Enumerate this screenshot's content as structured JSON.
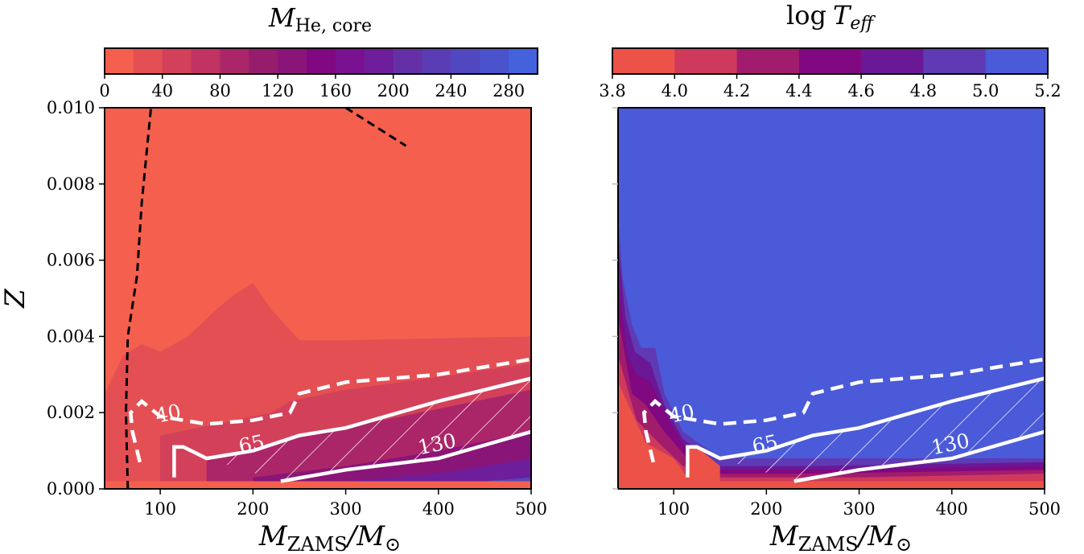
{
  "chart_data": [
    {
      "type": "contour",
      "title_main": "M",
      "title_sub": "He, core",
      "colorbar": {
        "ticks": [
          "0",
          "40",
          "80",
          "120",
          "160",
          "200",
          "240",
          "280"
        ],
        "tick_values": [
          0,
          40,
          80,
          120,
          160,
          200,
          240,
          280
        ],
        "range": [
          0,
          300
        ],
        "levels": 15,
        "colors": [
          "#f5604e",
          "#e44f54",
          "#d3405a",
          "#c03362",
          "#ab2668",
          "#961c6e",
          "#8a1578",
          "#800880",
          "#7a1190",
          "#6e1e9a",
          "#6530a6",
          "#5a3cb4",
          "#5147c0",
          "#4a52cc",
          "#4362dc"
        ]
      },
      "xlabel_main": "M",
      "xlabel_sub": "ZAMS",
      "xlabel_tail": "/M",
      "xlabel_sun": "⊙",
      "ylabel": "Z",
      "x_ticks": [
        "100",
        "200",
        "300",
        "400",
        "500"
      ],
      "x_tick_values": [
        100,
        200,
        300,
        400,
        500
      ],
      "xlim": [
        40,
        500
      ],
      "y_ticks": [
        "0.000",
        "0.002",
        "0.004",
        "0.006",
        "0.008",
        "0.010"
      ],
      "y_tick_values": [
        0,
        0.002,
        0.004,
        0.006,
        0.008,
        0.01
      ],
      "ylim": [
        0,
        0.01
      ],
      "filled_regions": [
        {
          "level_color": "#e44f54",
          "boundary": [
            [
              40,
              0.0025
            ],
            [
              60,
              0.0035
            ],
            [
              80,
              0.0038
            ],
            [
              100,
              0.0036
            ],
            [
              130,
              0.004
            ],
            [
              160,
              0.0047
            ],
            [
              180,
              0.0051
            ],
            [
              200,
              0.0054
            ],
            [
              220,
              0.0047
            ],
            [
              250,
              0.0039
            ],
            [
              300,
              0.0039
            ],
            [
              500,
              0.004
            ],
            [
              500,
              0
            ],
            [
              40,
              0
            ]
          ]
        },
        {
          "level_color": "#d3405a",
          "boundary": [
            [
              100,
              0.0014
            ],
            [
              140,
              0.0016
            ],
            [
              180,
              0.0018
            ],
            [
              220,
              0.002
            ],
            [
              240,
              0.0023
            ],
            [
              300,
              0.0026
            ],
            [
              360,
              0.0028
            ],
            [
              420,
              0.003
            ],
            [
              500,
              0.0033
            ],
            [
              500,
              0
            ],
            [
              100,
              0
            ]
          ]
        },
        {
          "level_color": "#ab2668",
          "boundary": [
            [
              150,
              0.0008
            ],
            [
              220,
              0.0012
            ],
            [
              300,
              0.0016
            ],
            [
              360,
              0.0019
            ],
            [
              420,
              0.0022
            ],
            [
              500,
              0.0026
            ],
            [
              500,
              0
            ],
            [
              150,
              0
            ]
          ]
        },
        {
          "level_color": "#8a1578",
          "boundary": [
            [
              200,
              0.0003
            ],
            [
              300,
              0.0006
            ],
            [
              400,
              0.001
            ],
            [
              500,
              0.0015
            ],
            [
              500,
              0
            ],
            [
              200,
              0
            ]
          ]
        },
        {
          "level_color": "#6e1e9a",
          "boundary": [
            [
              300,
              0.0002
            ],
            [
              400,
              0.0004
            ],
            [
              500,
              0.0008
            ],
            [
              500,
              0
            ],
            [
              300,
              0
            ]
          ]
        },
        {
          "level_color": "#5147c0",
          "boundary": [
            [
              400,
              0.0001
            ],
            [
              450,
              0.0002
            ],
            [
              500,
              0.0003
            ],
            [
              500,
              0
            ],
            [
              400,
              0
            ]
          ]
        }
      ],
      "bottom_strip_color": "#f5604e",
      "contour_labels": [
        "40",
        "65",
        "130"
      ],
      "contour_label_positions": [
        [
          110,
          0.0018
        ],
        [
          200,
          0.001
        ],
        [
          400,
          0.001
        ]
      ]
    },
    {
      "type": "contour",
      "title_main": "log",
      "title_sub": "eff",
      "title_var": "T",
      "colorbar": {
        "ticks": [
          "3.8",
          "4.0",
          "4.2",
          "4.4",
          "4.6",
          "4.8",
          "5.0",
          "5.2"
        ],
        "tick_values": [
          3.8,
          4.0,
          4.2,
          4.4,
          4.6,
          4.8,
          5.0,
          5.2
        ],
        "range": [
          3.8,
          5.2
        ],
        "levels": 7,
        "colors": [
          "#ed5248",
          "#cf3a5c",
          "#a21c6e",
          "#800880",
          "#6a1896",
          "#5f3ab4",
          "#4a5ad8"
        ]
      },
      "xlabel_main": "M",
      "xlabel_sub": "ZAMS",
      "xlabel_tail": "/M",
      "xlabel_sun": "⊙",
      "x_ticks": [
        "100",
        "200",
        "300",
        "400",
        "500"
      ],
      "x_tick_values": [
        100,
        200,
        300,
        400,
        500
      ],
      "xlim": [
        40,
        500
      ],
      "ylim": [
        0,
        0.01
      ],
      "background_color": "#4a5ad8",
      "contour_labels": [
        "40",
        "65",
        "130"
      ],
      "contour_label_positions": [
        [
          110,
          0.0018
        ],
        [
          200,
          0.001
        ],
        [
          400,
          0.001
        ]
      ]
    }
  ],
  "shared_contours": {
    "dashed_white": [
      [
        78,
        0.0007
      ],
      [
        70,
        0.0015
      ],
      [
        68,
        0.002
      ],
      [
        80,
        0.0023
      ],
      [
        100,
        0.0019
      ],
      [
        150,
        0.0017
      ],
      [
        200,
        0.0018
      ],
      [
        240,
        0.002
      ],
      [
        250,
        0.0025
      ],
      [
        300,
        0.0028
      ],
      [
        400,
        0.003
      ],
      [
        500,
        0.0034
      ]
    ],
    "solid_white_upper": [
      [
        115,
        0.0003
      ],
      [
        115,
        0.0011
      ],
      [
        125,
        0.0011
      ],
      [
        150,
        0.0008
      ],
      [
        200,
        0.001
      ],
      [
        250,
        0.0014
      ],
      [
        300,
        0.0016
      ],
      [
        400,
        0.0023
      ],
      [
        500,
        0.0029
      ]
    ],
    "solid_white_lower": [
      [
        230,
        0.0002
      ],
      [
        300,
        0.0005
      ],
      [
        400,
        0.0008
      ],
      [
        500,
        0.0015
      ]
    ],
    "black_dashed_left": [
      [
        65,
        0.0
      ],
      [
        63,
        0.002
      ],
      [
        65,
        0.004
      ],
      [
        75,
        0.0056
      ],
      [
        80,
        0.0075
      ],
      [
        90,
        0.01
      ]
    ],
    "black_dashed_right": [
      [
        300,
        0.01
      ],
      [
        365,
        0.009
      ]
    ]
  }
}
